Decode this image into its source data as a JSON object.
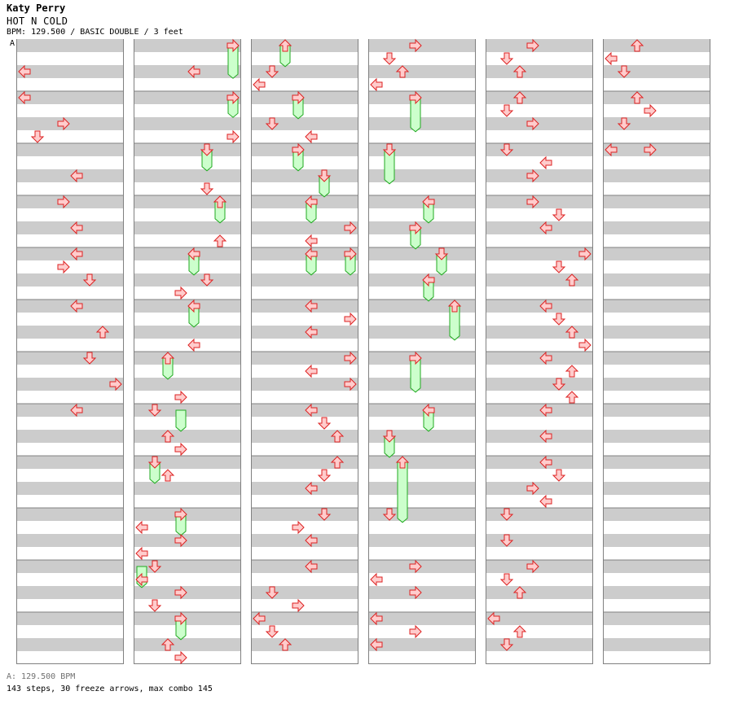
{
  "header": {
    "artist": "Katy Perry",
    "song_title": "HOT N COLD",
    "chart_info": "BPM: 129.500 / BASIC DOUBLE / 3 feet",
    "bpm_marker": "A"
  },
  "footer": {
    "bpm_legend": "A: 129.500 BPM",
    "stats": "143 steps, 30 freeze arrows, max combo 145"
  },
  "colors": {
    "band_gray": "#cccccc",
    "band_white": "#ffffff",
    "arrow_fill": "#ffcccc",
    "arrow_stroke": "#dd2222",
    "freeze_fill": "#ccffcc",
    "freeze_stroke": "#22aa22",
    "marker_line": "#3c7ce0"
  },
  "chart_data": {
    "type": "step-chart",
    "mode": "BASIC DOUBLE",
    "difficulty_feet": 3,
    "bpm": 129.5,
    "steps": 143,
    "freeze_arrows": 30,
    "max_combo": 145,
    "lanes": [
      "left",
      "down",
      "up",
      "right",
      "left",
      "down",
      "up",
      "right"
    ],
    "columns": [
      {
        "index": 1,
        "arrows": [
          {
            "lane": 0,
            "row": 2
          },
          {
            "lane": 0,
            "row": 4
          },
          {
            "lane": 3,
            "row": 6
          },
          {
            "lane": 1,
            "row": 7
          },
          {
            "lane": 4,
            "row": 10
          },
          {
            "lane": 3,
            "row": 12
          },
          {
            "lane": 4,
            "row": 14
          },
          {
            "lane": 4,
            "row": 16
          },
          {
            "lane": 3,
            "row": 17
          },
          {
            "lane": 5,
            "row": 18
          },
          {
            "lane": 4,
            "row": 20
          },
          {
            "lane": 6,
            "row": 22
          },
          {
            "lane": 5,
            "row": 24
          },
          {
            "lane": 7,
            "row": 26
          },
          {
            "lane": 4,
            "row": 28
          }
        ],
        "freezes": []
      },
      {
        "index": 2,
        "arrows": [
          {
            "lane": 7,
            "row": 0
          },
          {
            "lane": 4,
            "row": 2
          },
          {
            "lane": 7,
            "row": 4
          },
          {
            "lane": 7,
            "row": 7
          },
          {
            "lane": 5,
            "row": 8
          },
          {
            "lane": 5,
            "row": 11
          },
          {
            "lane": 6,
            "row": 12
          },
          {
            "lane": 6,
            "row": 15
          },
          {
            "lane": 4,
            "row": 16
          },
          {
            "lane": 5,
            "row": 18
          },
          {
            "lane": 3,
            "row": 19
          },
          {
            "lane": 4,
            "row": 20
          },
          {
            "lane": 4,
            "row": 23
          },
          {
            "lane": 2,
            "row": 24
          },
          {
            "lane": 3,
            "row": 27
          },
          {
            "lane": 1,
            "row": 28
          },
          {
            "lane": 2,
            "row": 30
          },
          {
            "lane": 3,
            "row": 31
          },
          {
            "lane": 1,
            "row": 32
          },
          {
            "lane": 2,
            "row": 33
          },
          {
            "lane": 3,
            "row": 36
          },
          {
            "lane": 0,
            "row": 37
          },
          {
            "lane": 3,
            "row": 38
          },
          {
            "lane": 0,
            "row": 39
          },
          {
            "lane": 1,
            "row": 40
          },
          {
            "lane": 0,
            "row": 41
          },
          {
            "lane": 3,
            "row": 42
          },
          {
            "lane": 1,
            "row": 43
          },
          {
            "lane": 3,
            "row": 44
          },
          {
            "lane": 2,
            "row": 46
          },
          {
            "lane": 3,
            "row": 47
          }
        ],
        "freezes": [
          {
            "lane": 7,
            "start": 0,
            "end": 2.2
          },
          {
            "lane": 7,
            "start": 4,
            "end": 5.2
          },
          {
            "lane": 5,
            "start": 8,
            "end": 9.3
          },
          {
            "lane": 6,
            "start": 12,
            "end": 13.3
          },
          {
            "lane": 4,
            "start": 16,
            "end": 17.3
          },
          {
            "lane": 4,
            "start": 20,
            "end": 21.3
          },
          {
            "lane": 2,
            "start": 24,
            "end": 25.3
          },
          {
            "lane": 3,
            "start": 28,
            "end": 29.3
          },
          {
            "lane": 1,
            "start": 32,
            "end": 33.3
          },
          {
            "lane": 3,
            "start": 36,
            "end": 37.3
          },
          {
            "lane": 0,
            "start": 40,
            "end": 41.3
          },
          {
            "lane": 3,
            "start": 44,
            "end": 45.3
          }
        ]
      },
      {
        "index": 3,
        "arrows": [
          {
            "lane": 2,
            "row": 0
          },
          {
            "lane": 1,
            "row": 2
          },
          {
            "lane": 0,
            "row": 3
          },
          {
            "lane": 3,
            "row": 4
          },
          {
            "lane": 1,
            "row": 6
          },
          {
            "lane": 4,
            "row": 7
          },
          {
            "lane": 3,
            "row": 8
          },
          {
            "lane": 5,
            "row": 10
          },
          {
            "lane": 4,
            "row": 12
          },
          {
            "lane": 7,
            "row": 14
          },
          {
            "lane": 4,
            "row": 15
          },
          {
            "lane": 4,
            "row": 16
          },
          {
            "lane": 7,
            "row": 16
          },
          {
            "lane": 4,
            "row": 20
          },
          {
            "lane": 7,
            "row": 21
          },
          {
            "lane": 4,
            "row": 22
          },
          {
            "lane": 7,
            "row": 24
          },
          {
            "lane": 4,
            "row": 25
          },
          {
            "lane": 7,
            "row": 26
          },
          {
            "lane": 4,
            "row": 28
          },
          {
            "lane": 5,
            "row": 29
          },
          {
            "lane": 6,
            "row": 30
          },
          {
            "lane": 6,
            "row": 32
          },
          {
            "lane": 5,
            "row": 33
          },
          {
            "lane": 4,
            "row": 34
          },
          {
            "lane": 5,
            "row": 36
          },
          {
            "lane": 3,
            "row": 37
          },
          {
            "lane": 4,
            "row": 38
          },
          {
            "lane": 4,
            "row": 40
          },
          {
            "lane": 1,
            "row": 42
          },
          {
            "lane": 3,
            "row": 43
          },
          {
            "lane": 0,
            "row": 44
          },
          {
            "lane": 1,
            "row": 45
          },
          {
            "lane": 2,
            "row": 46
          }
        ],
        "freezes": [
          {
            "lane": 2,
            "start": 0,
            "end": 1.3
          },
          {
            "lane": 3,
            "start": 4,
            "end": 5.3
          },
          {
            "lane": 3,
            "start": 8,
            "end": 9.3
          },
          {
            "lane": 5,
            "start": 10,
            "end": 11.3
          },
          {
            "lane": 4,
            "start": 12,
            "end": 13.3
          },
          {
            "lane": 4,
            "start": 16,
            "end": 17.3
          },
          {
            "lane": 7,
            "start": 16,
            "end": 17.3
          }
        ]
      },
      {
        "index": 4,
        "arrows": [
          {
            "lane": 3,
            "row": 0
          },
          {
            "lane": 1,
            "row": 1
          },
          {
            "lane": 2,
            "row": 2
          },
          {
            "lane": 0,
            "row": 3
          },
          {
            "lane": 3,
            "row": 4
          },
          {
            "lane": 1,
            "row": 8
          },
          {
            "lane": 4,
            "row": 12
          },
          {
            "lane": 3,
            "row": 14
          },
          {
            "lane": 5,
            "row": 16
          },
          {
            "lane": 4,
            "row": 18
          },
          {
            "lane": 6,
            "row": 20
          },
          {
            "lane": 3,
            "row": 24
          },
          {
            "lane": 4,
            "row": 28
          },
          {
            "lane": 1,
            "row": 30
          },
          {
            "lane": 2,
            "row": 32
          },
          {
            "lane": 1,
            "row": 36
          },
          {
            "lane": 3,
            "row": 40
          },
          {
            "lane": 0,
            "row": 41
          },
          {
            "lane": 3,
            "row": 42
          },
          {
            "lane": 0,
            "row": 44
          },
          {
            "lane": 3,
            "row": 45
          },
          {
            "lane": 0,
            "row": 46
          }
        ],
        "freezes": [
          {
            "lane": 3,
            "start": 4,
            "end": 6.3
          },
          {
            "lane": 1,
            "start": 8,
            "end": 10.3
          },
          {
            "lane": 4,
            "start": 12,
            "end": 13.3
          },
          {
            "lane": 3,
            "start": 14,
            "end": 15.3
          },
          {
            "lane": 5,
            "start": 16,
            "end": 17.3
          },
          {
            "lane": 4,
            "start": 18,
            "end": 19.3
          },
          {
            "lane": 6,
            "start": 20,
            "end": 22.3
          },
          {
            "lane": 3,
            "start": 24,
            "end": 26.3
          },
          {
            "lane": 4,
            "start": 28,
            "end": 29.3
          },
          {
            "lane": 1,
            "start": 30,
            "end": 31.3
          },
          {
            "lane": 2,
            "start": 32,
            "end": 36.3
          }
        ]
      },
      {
        "index": 5,
        "arrows": [
          {
            "lane": 3,
            "row": 0
          },
          {
            "lane": 1,
            "row": 1
          },
          {
            "lane": 2,
            "row": 2
          },
          {
            "lane": 2,
            "row": 4
          },
          {
            "lane": 1,
            "row": 5
          },
          {
            "lane": 3,
            "row": 6
          },
          {
            "lane": 1,
            "row": 8
          },
          {
            "lane": 4,
            "row": 9
          },
          {
            "lane": 3,
            "row": 10
          },
          {
            "lane": 3,
            "row": 12
          },
          {
            "lane": 5,
            "row": 13
          },
          {
            "lane": 4,
            "row": 14
          },
          {
            "lane": 7,
            "row": 16
          },
          {
            "lane": 5,
            "row": 17
          },
          {
            "lane": 6,
            "row": 18
          },
          {
            "lane": 4,
            "row": 20
          },
          {
            "lane": 5,
            "row": 21
          },
          {
            "lane": 6,
            "row": 22
          },
          {
            "lane": 7,
            "row": 23
          },
          {
            "lane": 4,
            "row": 24
          },
          {
            "lane": 6,
            "row": 25
          },
          {
            "lane": 5,
            "row": 26
          },
          {
            "lane": 6,
            "row": 27
          },
          {
            "lane": 4,
            "row": 28
          },
          {
            "lane": 4,
            "row": 30
          },
          {
            "lane": 4,
            "row": 32
          },
          {
            "lane": 5,
            "row": 33
          },
          {
            "lane": 3,
            "row": 34
          },
          {
            "lane": 4,
            "row": 35
          },
          {
            "lane": 1,
            "row": 36
          },
          {
            "lane": 1,
            "row": 38
          },
          {
            "lane": 3,
            "row": 40
          },
          {
            "lane": 1,
            "row": 41
          },
          {
            "lane": 2,
            "row": 42
          },
          {
            "lane": 0,
            "row": 44
          },
          {
            "lane": 2,
            "row": 45
          },
          {
            "lane": 1,
            "row": 46
          }
        ],
        "freezes": []
      },
      {
        "index": 6,
        "arrows": [
          {
            "lane": 2,
            "row": 0
          },
          {
            "lane": 0,
            "row": 1
          },
          {
            "lane": 1,
            "row": 2
          },
          {
            "lane": 2,
            "row": 4
          },
          {
            "lane": 3,
            "row": 5
          },
          {
            "lane": 1,
            "row": 6
          },
          {
            "lane": 0,
            "row": 8
          },
          {
            "lane": 3,
            "row": 8
          }
        ],
        "freezes": []
      }
    ]
  }
}
